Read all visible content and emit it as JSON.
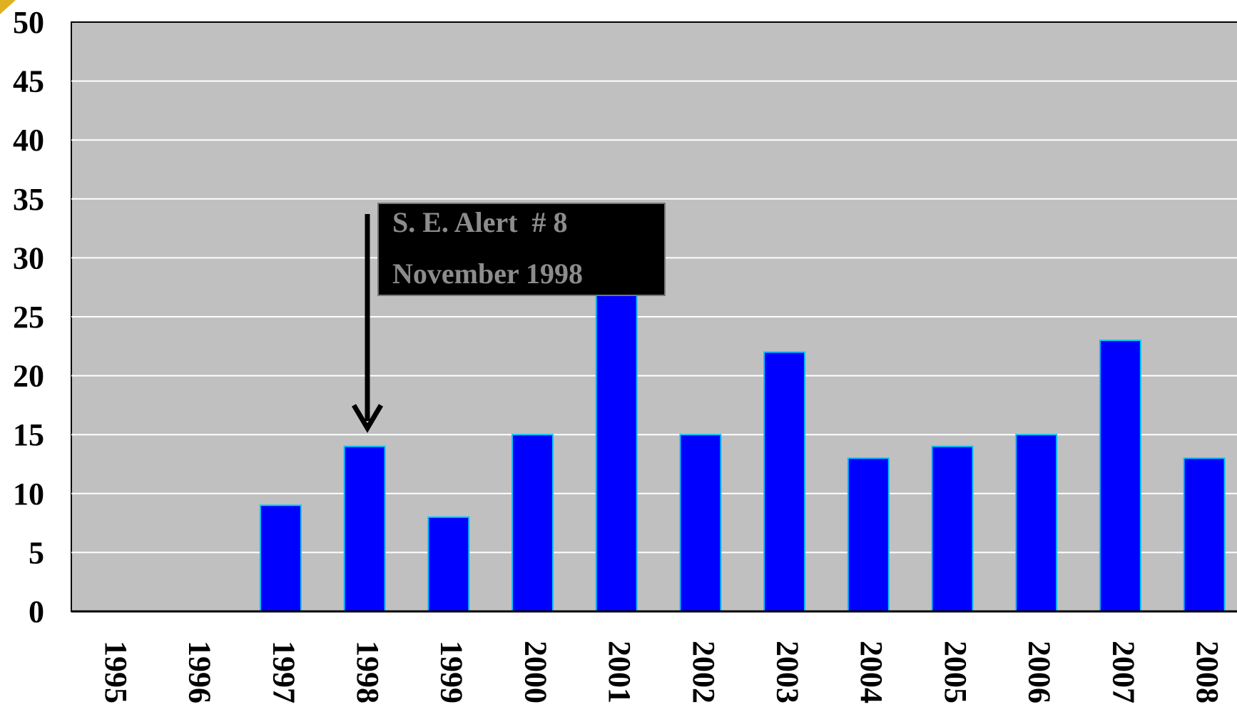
{
  "chart_data": {
    "type": "bar",
    "categories": [
      "1995",
      "1996",
      "1997",
      "1998",
      "1999",
      "2000",
      "2001",
      "2002",
      "2003",
      "2004",
      "2005",
      "2006",
      "2007",
      "2008"
    ],
    "values": [
      0,
      0,
      9,
      14,
      8,
      15,
      27,
      15,
      22,
      13,
      14,
      15,
      23,
      13
    ],
    "ylim": [
      0,
      50
    ],
    "yticks": [
      "0",
      "5",
      "10",
      "15",
      "20",
      "25",
      "30",
      "35",
      "40",
      "45",
      "50"
    ],
    "grid": true,
    "plot_background": "#c0c0c0",
    "bar_color": "#0000ff",
    "bar_edge_color": "#00c8ff",
    "annotation": {
      "lines": [
        "S. E. Alert  # 8",
        "November 1998"
      ],
      "points_to": "1998"
    }
  }
}
